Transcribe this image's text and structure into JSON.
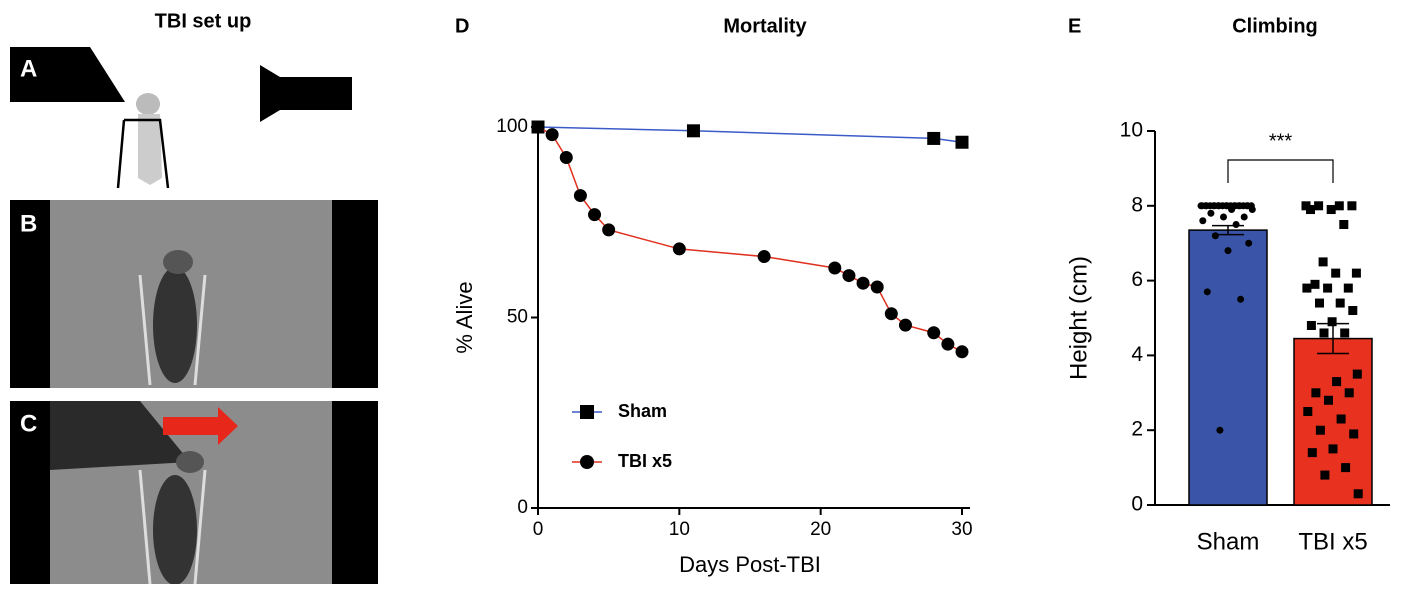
{
  "setup_panel": {
    "title": "TBI set up",
    "labels": [
      "A",
      "B",
      "C"
    ]
  },
  "chart_data": [
    {
      "type": "line",
      "panel": "D",
      "title": "Mortality",
      "x_label": "Days Post-TBI",
      "y_label": "% Alive",
      "series": [
        {
          "name": "Sham",
          "color": "#3a5bc7",
          "marker": "square",
          "x": [
            0,
            11,
            28,
            30
          ],
          "values": [
            100,
            99,
            97,
            96
          ]
        },
        {
          "name": "TBI x5",
          "color": "#e0301e",
          "marker": "circle",
          "x": [
            0,
            1,
            2,
            3,
            4,
            5,
            10,
            16,
            21,
            22,
            23,
            24,
            25,
            26,
            28,
            29,
            30
          ],
          "values": [
            100,
            98,
            92,
            82,
            77,
            73,
            68,
            66,
            63,
            61,
            59,
            58,
            51,
            48,
            46,
            43,
            41
          ]
        }
      ],
      "xlim": [
        0,
        30
      ],
      "ylim": [
        0,
        100
      ],
      "xticks": [
        0,
        10,
        20,
        30
      ],
      "yticks": [
        0,
        50,
        100
      ],
      "legend": "lower left"
    },
    {
      "type": "bar",
      "panel": "E",
      "title": "Climbing",
      "y_label": "Height (cm)",
      "categories": [
        "Sham",
        "TBI x5"
      ],
      "values": [
        7.35,
        4.45
      ],
      "errors": [
        0.12,
        0.4
      ],
      "colors": [
        "#3a55a8",
        "#e8311f"
      ],
      "points": [
        [
          8,
          8,
          8,
          8,
          8,
          8,
          8,
          8,
          8,
          8,
          8,
          8,
          8,
          8,
          8,
          8,
          8,
          8,
          8,
          8,
          8,
          7.9,
          7.9,
          7.8,
          7.7,
          7.7,
          7.6,
          7.5,
          7.2,
          7.0,
          6.8,
          5.7,
          5.5,
          2
        ],
        [
          8,
          8,
          8,
          8,
          7.9,
          7.9,
          7.5,
          6.5,
          6.2,
          6.2,
          5.9,
          5.8,
          5.8,
          5.8,
          5.4,
          5.4,
          5.2,
          4.9,
          4.8,
          4.6,
          4.6,
          3.5,
          3.3,
          3.0,
          3.0,
          2.8,
          2.5,
          2.3,
          2.0,
          1.9,
          1.5,
          1.4,
          1.0,
          0.8,
          0.3
        ]
      ],
      "annotation": "***",
      "ylim": [
        0,
        10
      ],
      "yticks": [
        0,
        2,
        4,
        6,
        8,
        10
      ]
    }
  ]
}
